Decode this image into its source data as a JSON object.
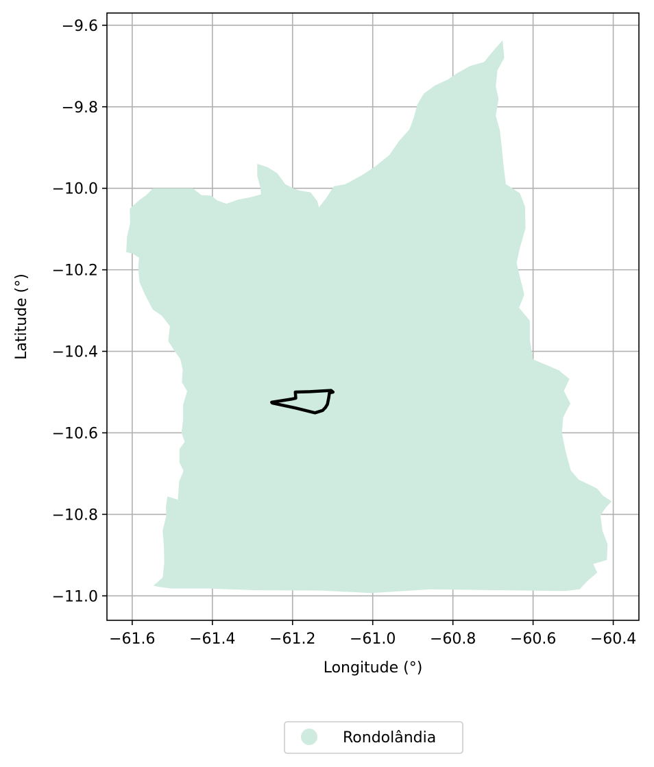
{
  "chart_data": {
    "type": "map",
    "xlabel": "Longitude (°)",
    "ylabel": "Latitude (°)",
    "xlim": [
      -61.663,
      -60.336
    ],
    "ylim": [
      -11.06,
      -9.57
    ],
    "x_ticks": [
      -61.6,
      -61.4,
      -61.2,
      -61.0,
      -60.8,
      -60.6,
      -60.4
    ],
    "x_tick_labels": [
      "−61.6",
      "−61.4",
      "−61.2",
      "−61.0",
      "−60.8",
      "−60.6",
      "−60.4"
    ],
    "y_ticks": [
      -9.6,
      -9.8,
      -10.0,
      -10.2,
      -10.4,
      -10.6,
      -10.8,
      -11.0
    ],
    "y_tick_labels": [
      "−9.6",
      "−9.8",
      "−10.0",
      "−10.2",
      "−10.4",
      "−10.6",
      "−10.8",
      "−11.0"
    ],
    "grid": true,
    "legend_placement": "bottom-center",
    "legend": [
      {
        "label": "Rondolândia",
        "color": "#cfebdf",
        "marker": "circle"
      }
    ],
    "region": {
      "name": "Rondolândia",
      "color": "#cfebdf",
      "outline_lonlat": [
        [
          -61.548,
          -10.0
        ],
        [
          -61.493,
          -10.0
        ],
        [
          -61.449,
          -10.0
        ],
        [
          -61.427,
          -10.017
        ],
        [
          -61.403,
          -10.018
        ],
        [
          -61.388,
          -10.03
        ],
        [
          -61.365,
          -10.038
        ],
        [
          -61.336,
          -10.028
        ],
        [
          -61.305,
          -10.022
        ],
        [
          -61.279,
          -10.015
        ],
        [
          -61.28,
          -10.0
        ],
        [
          -61.288,
          -9.97
        ],
        [
          -61.288,
          -9.94
        ],
        [
          -61.263,
          -9.948
        ],
        [
          -61.238,
          -9.963
        ],
        [
          -61.218,
          -9.99
        ],
        [
          -61.198,
          -10.0
        ],
        [
          -61.184,
          -10.005
        ],
        [
          -61.155,
          -10.01
        ],
        [
          -61.138,
          -10.032
        ],
        [
          -61.134,
          -10.047
        ],
        [
          -61.117,
          -10.025
        ],
        [
          -61.097,
          -9.995
        ],
        [
          -61.068,
          -9.99
        ],
        [
          -61.022,
          -9.965
        ],
        [
          -60.992,
          -9.945
        ],
        [
          -60.958,
          -9.918
        ],
        [
          -60.935,
          -9.885
        ],
        [
          -60.908,
          -9.855
        ],
        [
          -60.897,
          -9.825
        ],
        [
          -60.889,
          -9.795
        ],
        [
          -60.873,
          -9.768
        ],
        [
          -60.845,
          -9.748
        ],
        [
          -60.812,
          -9.733
        ],
        [
          -60.79,
          -9.718
        ],
        [
          -60.757,
          -9.7
        ],
        [
          -60.722,
          -9.69
        ],
        [
          -60.708,
          -9.673
        ],
        [
          -60.695,
          -9.658
        ],
        [
          -60.676,
          -9.637
        ],
        [
          -60.672,
          -9.68
        ],
        [
          -60.689,
          -9.711
        ],
        [
          -60.693,
          -9.75
        ],
        [
          -60.686,
          -9.781
        ],
        [
          -60.693,
          -9.822
        ],
        [
          -60.683,
          -9.857
        ],
        [
          -60.678,
          -9.9
        ],
        [
          -60.674,
          -9.94
        ],
        [
          -60.668,
          -9.99
        ],
        [
          -60.633,
          -10.012
        ],
        [
          -60.62,
          -10.045
        ],
        [
          -60.619,
          -10.098
        ],
        [
          -60.633,
          -10.147
        ],
        [
          -60.641,
          -10.183
        ],
        [
          -60.632,
          -10.221
        ],
        [
          -60.622,
          -10.261
        ],
        [
          -60.635,
          -10.293
        ],
        [
          -60.608,
          -10.325
        ],
        [
          -60.608,
          -10.372
        ],
        [
          -60.6,
          -10.42
        ],
        [
          -60.563,
          -10.435
        ],
        [
          -60.535,
          -10.447
        ],
        [
          -60.509,
          -10.468
        ],
        [
          -60.523,
          -10.497
        ],
        [
          -60.507,
          -10.528
        ],
        [
          -60.525,
          -10.562
        ],
        [
          -60.528,
          -10.6
        ],
        [
          -60.519,
          -10.645
        ],
        [
          -60.506,
          -10.692
        ],
        [
          -60.486,
          -10.715
        ],
        [
          -60.458,
          -10.728
        ],
        [
          -60.44,
          -10.737
        ],
        [
          -60.426,
          -10.754
        ],
        [
          -60.404,
          -10.768
        ],
        [
          -60.418,
          -10.783
        ],
        [
          -60.432,
          -10.802
        ],
        [
          -60.427,
          -10.84
        ],
        [
          -60.414,
          -10.874
        ],
        [
          -60.416,
          -10.912
        ],
        [
          -60.45,
          -10.922
        ],
        [
          -60.44,
          -10.943
        ],
        [
          -60.466,
          -10.965
        ],
        [
          -60.484,
          -10.984
        ],
        [
          -60.521,
          -10.988
        ],
        [
          -60.697,
          -10.986
        ],
        [
          -60.855,
          -10.984
        ],
        [
          -61.004,
          -10.993
        ],
        [
          -61.128,
          -10.987
        ],
        [
          -61.297,
          -10.986
        ],
        [
          -61.411,
          -10.982
        ],
        [
          -61.503,
          -10.982
        ],
        [
          -61.533,
          -10.978
        ],
        [
          -61.547,
          -10.975
        ],
        [
          -61.524,
          -10.955
        ],
        [
          -61.52,
          -10.918
        ],
        [
          -61.521,
          -10.878
        ],
        [
          -61.524,
          -10.84
        ],
        [
          -61.515,
          -10.803
        ],
        [
          -61.516,
          -10.782
        ],
        [
          -61.512,
          -10.756
        ],
        [
          -61.486,
          -10.764
        ],
        [
          -61.483,
          -10.72
        ],
        [
          -61.472,
          -10.693
        ],
        [
          -61.482,
          -10.673
        ],
        [
          -61.482,
          -10.64
        ],
        [
          -61.469,
          -10.622
        ],
        [
          -61.477,
          -10.6
        ],
        [
          -61.473,
          -10.568
        ],
        [
          -61.473,
          -10.531
        ],
        [
          -61.463,
          -10.498
        ],
        [
          -61.476,
          -10.476
        ],
        [
          -61.474,
          -10.445
        ],
        [
          -61.48,
          -10.419
        ],
        [
          -61.495,
          -10.398
        ],
        [
          -61.51,
          -10.375
        ],
        [
          -61.506,
          -10.338
        ],
        [
          -61.526,
          -10.313
        ],
        [
          -61.549,
          -10.297
        ],
        [
          -61.567,
          -10.263
        ],
        [
          -61.582,
          -10.23
        ],
        [
          -61.585,
          -10.195
        ],
        [
          -61.583,
          -10.17
        ],
        [
          -61.6,
          -10.16
        ],
        [
          -61.615,
          -10.157
        ],
        [
          -61.613,
          -10.12
        ],
        [
          -61.605,
          -10.085
        ],
        [
          -61.606,
          -10.05
        ],
        [
          -61.581,
          -10.028
        ],
        [
          -61.565,
          -10.017
        ]
      ]
    },
    "overlay_outline": {
      "color": "#000000",
      "outline_lonlat": [
        [
          -61.252,
          -10.525
        ],
        [
          -61.201,
          -10.517
        ],
        [
          -61.192,
          -10.515
        ],
        [
          -61.193,
          -10.5
        ],
        [
          -61.156,
          -10.499
        ],
        [
          -61.104,
          -10.496
        ],
        [
          -61.099,
          -10.5
        ],
        [
          -61.108,
          -10.502
        ],
        [
          -61.11,
          -10.515
        ],
        [
          -61.113,
          -10.53
        ],
        [
          -61.118,
          -10.538
        ],
        [
          -61.125,
          -10.545
        ],
        [
          -61.144,
          -10.551
        ],
        [
          -61.193,
          -10.539
        ],
        [
          -61.25,
          -10.527
        ]
      ]
    }
  }
}
